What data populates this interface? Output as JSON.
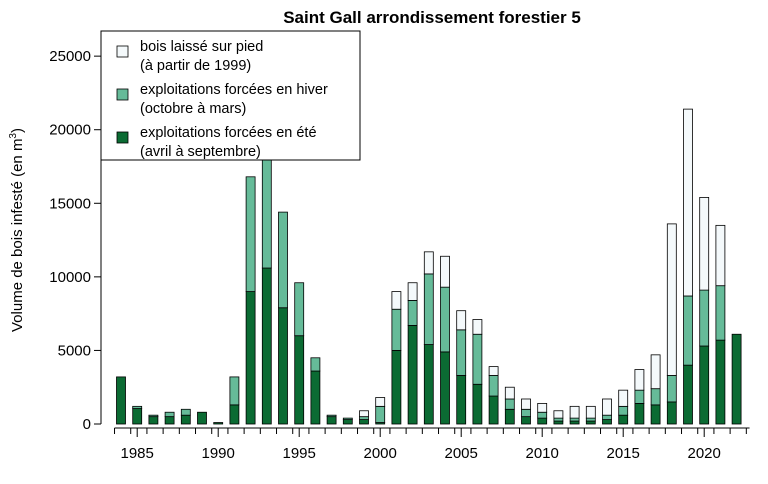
{
  "chart_data": {
    "type": "bar",
    "stacked": true,
    "title": "Saint Gall arrondissement forestier 5",
    "ylabel": "Volume de bois infesté (en m³)",
    "ylabel_main": "Volume de bois infesté (en m",
    "ylabel_sup": "3",
    "ylabel_end": ")",
    "xlabel": "",
    "ylim": [
      0,
      28000
    ],
    "yticks": [
      0,
      5000,
      10000,
      15000,
      20000,
      25000
    ],
    "xticks": [
      1985,
      1990,
      1995,
      2000,
      2005,
      2010,
      2015,
      2020
    ],
    "categories": [
      1984,
      1985,
      1986,
      1987,
      1988,
      1989,
      1990,
      1991,
      1992,
      1993,
      1994,
      1995,
      1996,
      1997,
      1998,
      1999,
      2000,
      2001,
      2002,
      2003,
      2004,
      2005,
      2006,
      2007,
      2008,
      2009,
      2010,
      2011,
      2012,
      2013,
      2014,
      2015,
      2016,
      2017,
      2018,
      2019,
      2020,
      2021,
      2022
    ],
    "series": [
      {
        "name": "exploitations forcées en été (avril à septembre)",
        "color": "#0b6b33",
        "values": [
          3200,
          1050,
          500,
          500,
          600,
          800,
          100,
          1300,
          9000,
          10600,
          7900,
          6000,
          3600,
          500,
          300,
          300,
          100,
          5000,
          6700,
          5400,
          4900,
          3300,
          2700,
          1900,
          1000,
          500,
          400,
          200,
          200,
          200,
          300,
          600,
          1400,
          1300,
          1500,
          4000,
          5300,
          5700,
          6100
        ]
      },
      {
        "name": "exploitations forcées en hiver (octobre à mars)",
        "color": "#66bb99",
        "values": [
          0,
          150,
          100,
          300,
          400,
          0,
          0,
          1900,
          7800,
          8000,
          6500,
          3600,
          900,
          100,
          100,
          200,
          1100,
          2800,
          1700,
          4800,
          4400,
          3100,
          3400,
          1400,
          700,
          500,
          400,
          200,
          200,
          200,
          300,
          600,
          900,
          1100,
          1800,
          4700,
          3800,
          3700,
          0
        ]
      },
      {
        "name": "bois laissé sur pied (à partir de 1999)",
        "color": "#f4f9fb",
        "values": [
          0,
          0,
          0,
          0,
          0,
          0,
          0,
          0,
          0,
          0,
          0,
          0,
          0,
          0,
          0,
          400,
          600,
          1200,
          1200,
          1500,
          2100,
          1300,
          1000,
          600,
          800,
          700,
          600,
          500,
          800,
          800,
          1100,
          1100,
          1400,
          2300,
          10300,
          12700,
          6300,
          4100,
          0
        ]
      }
    ],
    "legend": {
      "placement": "top-left",
      "entries": [
        {
          "line1": "bois laissé sur pied",
          "line2": "(à partir de 1999)",
          "color": "#f4f9fb"
        },
        {
          "line1": "exploitations forcées en hiver",
          "line2": "(octobre à mars)",
          "color": "#66bb99"
        },
        {
          "line1": "exploitations forcées en été",
          "line2": "(avril à septembre)",
          "color": "#0b6b33"
        }
      ]
    },
    "grid": false
  }
}
